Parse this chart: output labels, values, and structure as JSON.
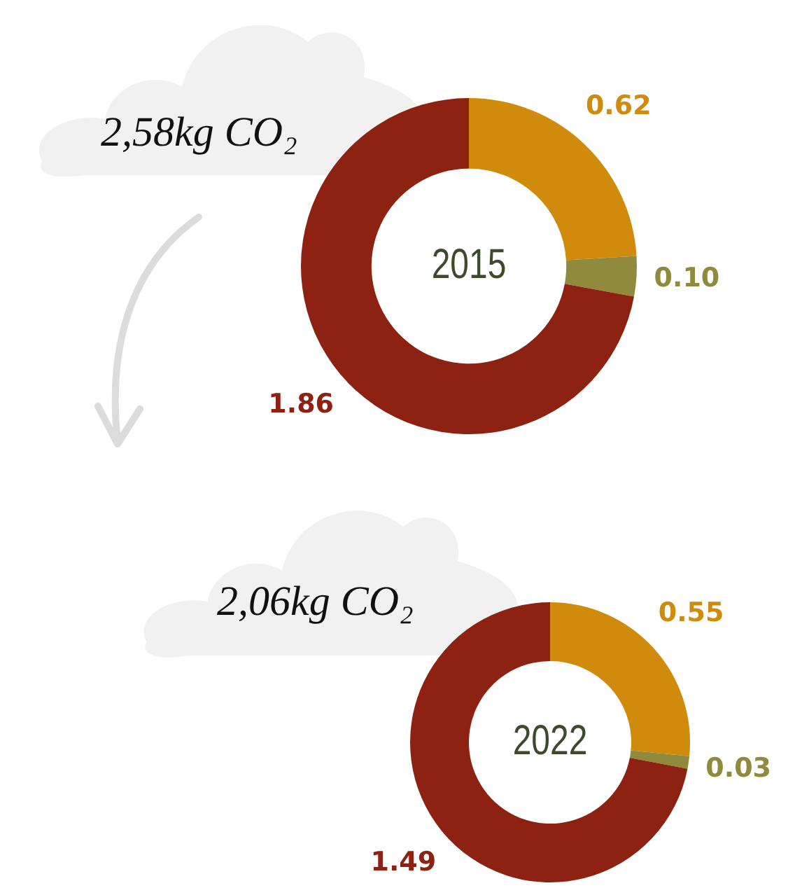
{
  "chart_data": [
    {
      "type": "donut",
      "title": "2015",
      "annotations": [
        "2,58kg CO₂"
      ],
      "categories": [
        null,
        null,
        null
      ],
      "values": [
        0.62,
        0.1,
        1.86
      ],
      "value_labels": [
        "0.62",
        "0.10",
        "1.86"
      ],
      "colors": [
        "#d18b0c",
        "#8f8a3c",
        "#8e2212"
      ]
    },
    {
      "type": "donut",
      "title": "2022",
      "annotations": [
        "2,06kg CO₂"
      ],
      "categories": [
        null,
        null,
        null
      ],
      "values": [
        0.55,
        0.03,
        1.49
      ],
      "value_labels": [
        "0.55",
        "0.03",
        "1.49"
      ],
      "colors": [
        "#d18b0c",
        "#8f8a3c",
        "#8e2212"
      ]
    }
  ]
}
